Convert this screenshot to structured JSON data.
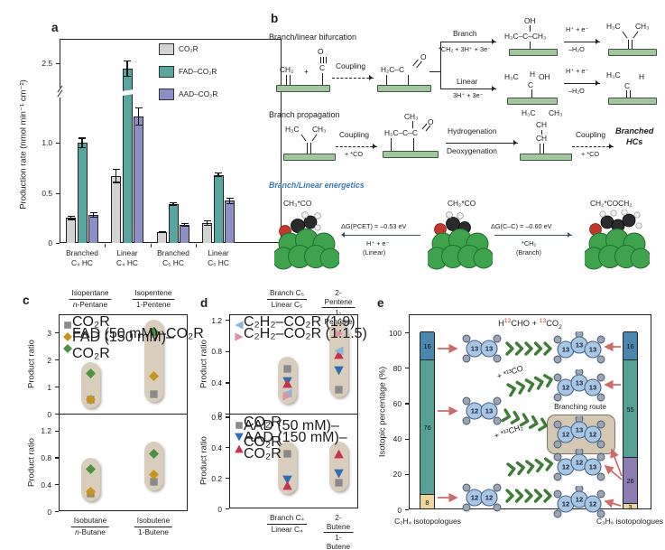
{
  "panel_a": {
    "label": "a"
  },
  "panel_c": {
    "label": "c"
  },
  "panel_d": {
    "label": "d"
  },
  "panel_e": {
    "label": "e"
  },
  "colors": {
    "teal": "#57a7a0",
    "purple": "#8b8fc6",
    "gray_bar": "#d3d3d3",
    "gold": "#c8951c",
    "green": "#4a9143",
    "blue_tri": "#2f6cb3",
    "red_tri": "#c6314e",
    "lightblue_tri": "#8cb3da",
    "pink_tri": "#dc93a5",
    "capsule": "#d9cdbc",
    "e_blue": "#4a86ad",
    "e_teal": "#55a196",
    "e_yellow": "#eed69c",
    "e_purple": "#8d7db3",
    "arrow_red": "#cf6a6b",
    "chevron_green": "#3f7c37",
    "energetics_blue": "#3779b5",
    "iso_red": "#c63f2f",
    "slab_green": "#a4c69c"
  },
  "panel_b": {
    "label": "b",
    "bifurcation_title": "Branch/linear bifurcation",
    "propagation_title": "Branch propagation",
    "energetics_title": "Branch/Linear energetics",
    "ch2": "CH₂",
    "plus": "+",
    "c": "C",
    "o": "O",
    "coupling": "Coupling",
    "h2c_c": "H₂C–C",
    "branch": "Branch",
    "branch_sub": "*CH₂ + 3H⁺ + 3e⁻",
    "linear": "Linear",
    "linear_sub": "3H⁺ + 3e⁻",
    "oh": "OH",
    "isopropoxy": "H₃C–C–CH₃",
    "h_e": "H⁺ + e⁻",
    "minus_h2o": "–H₂O",
    "h3c": "H₃C",
    "ch3": "CH₃",
    "h": "H",
    "ch": "CH",
    "plus_co": "+ *CO",
    "acyl": "H₃C–C–C",
    "hydrogenation": "Hydrogenation",
    "deoxygenation": "Deoxygenation",
    "branched_1": "Branched",
    "branched_2": "HCs",
    "mol_left": "CH₃*CO",
    "mol_center": "CH₂*CO",
    "mol_right": "CH₂*COCH₂",
    "dg_left": "ΔG(PCET) = –0.53 eV",
    "dg_left_sub": "H⁺ + e⁻",
    "dg_left_sub2": "(Linear)",
    "dg_right": "ΔG(C–C) = –0.60 eV",
    "dg_right_sub": "*CH₂",
    "dg_right_sub2": "(Branch)"
  },
  "chart_data": [
    {
      "id": "a",
      "type": "bar",
      "ylabel": "Production rate (nmol min⁻¹ cm⁻²)",
      "ylim": [
        0,
        2.75
      ],
      "axis_break": [
        1.45,
        2.25
      ],
      "yticks": [
        "0",
        "0.5",
        "1.0",
        "2.5"
      ],
      "categories": [
        {
          "line1": "Branched",
          "line2": "C₄ HC"
        },
        {
          "line1": "Linear",
          "line2": "C₄ HC"
        },
        {
          "line1": "Branched",
          "line2": "C₅ HC"
        },
        {
          "line1": "Linear",
          "line2": "C₅ HC"
        }
      ],
      "series": [
        {
          "name": "CO₂R",
          "color": "#d3d3d3",
          "values": [
            0.25,
            0.67,
            0.11,
            0.2
          ],
          "errors": [
            0.02,
            0.07,
            0.01,
            0.025
          ]
        },
        {
          "name": "FAD–CO₂R",
          "color": "#57a7a0",
          "values": [
            1.0,
            2.45,
            0.39,
            0.68
          ],
          "errors": [
            0.05,
            0.08,
            0.015,
            0.02
          ]
        },
        {
          "name": "AAD–CO₂R",
          "color": "#8b8fc6",
          "values": [
            0.28,
            1.26,
            0.18,
            0.42
          ],
          "errors": [
            0.03,
            0.09,
            0.02,
            0.03
          ]
        }
      ],
      "legend_position": "top-right",
      "grid": false
    },
    {
      "id": "c_top",
      "type": "scatter",
      "ylabel": "Product ratio",
      "ylim": [
        0,
        3.67
      ],
      "yticks": [
        "0",
        "1",
        "2",
        "3"
      ],
      "columns": [
        {
          "num": "Isopentane",
          "den": "n-Pentane",
          "it": true
        },
        {
          "num": "Isopentene",
          "den": "1-Pentene"
        }
      ],
      "series": [
        {
          "name": "CO₂R",
          "marker": "square",
          "color": "#8a8a8a",
          "values": [
            0.58,
            0.8
          ]
        },
        {
          "name": "FAD (50 mM)–CO₂R",
          "marker": "diamond",
          "color": "#c8951c",
          "values": [
            0.6,
            1.45
          ]
        },
        {
          "name": "FAD (150 mM)–CO₂R",
          "marker": "diamond",
          "color": "#4a9143",
          "values": [
            1.55,
            3.1
          ]
        }
      ]
    },
    {
      "id": "c_bottom",
      "type": "scatter",
      "ylabel": "Product ratio",
      "ylim": [
        0,
        1.45
      ],
      "yticks": [
        "0",
        "0.4",
        "0.8",
        "1.2"
      ],
      "columns": [
        {
          "num": "Isobutane",
          "den": "n-Butane",
          "it": true
        },
        {
          "num": "Isobutene",
          "den": "1-Butene"
        }
      ],
      "series": [
        {
          "name": "CO₂R",
          "marker": "square",
          "color": "#8a8a8a",
          "values": [
            0.29,
            0.46
          ]
        },
        {
          "name": "FAD (50 mM)–CO₂R",
          "marker": "diamond",
          "color": "#c8951c",
          "values": [
            0.32,
            0.57
          ]
        },
        {
          "name": "FAD (150 mM)–CO₂R",
          "marker": "diamond",
          "color": "#4a9143",
          "values": [
            0.65,
            0.88
          ]
        }
      ]
    },
    {
      "id": "d_top",
      "type": "scatter",
      "ylabel": "Product ratio",
      "ylim": [
        0,
        1.27
      ],
      "yticks": [
        "0",
        "0.4",
        "0.8",
        "1.2"
      ],
      "columns": [
        {
          "num": "Branch C₅",
          "den": "Linear C₅"
        },
        {
          "num": "2-Pentene",
          "den": "1-Pentene"
        }
      ],
      "series": [
        {
          "name": "CO₂R",
          "marker": "square",
          "color": "#8a8a8a",
          "values": [
            0.6,
            0.33
          ]
        },
        {
          "name": "AAD (50 mM)–CO₂R",
          "marker": "down",
          "color": "#2f6cb3",
          "values": [
            0.43,
            0.57
          ]
        },
        {
          "name": "AAD (150 mM)–CO₂R",
          "marker": "up",
          "color": "#c6314e",
          "values": [
            0.41,
            0.78
          ]
        },
        {
          "name": "C₂H₂–CO₂R (1:9)",
          "marker": "left",
          "color": "#8cb3da",
          "values": [
            0.28,
            0.82
          ]
        },
        {
          "name": "C₂H₂–CO₂R (1:1.5)",
          "marker": "right",
          "color": "#dc93a5",
          "values": [
            0.25,
            1.05
          ]
        }
      ]
    },
    {
      "id": "d_bottom",
      "type": "scatter",
      "ylabel": "Product ratio",
      "ylim": [
        0,
        0.62
      ],
      "yticks": [
        "0",
        "0.2",
        "0.4",
        "0.6"
      ],
      "columns": [
        {
          "num": "Branch C₄",
          "den": "Linear C₄"
        },
        {
          "num": "2-Butene",
          "den": "1-Butene"
        }
      ],
      "series": [
        {
          "name": "CO₂R",
          "marker": "square",
          "color": "#8a8a8a",
          "values": [
            0.37,
            0.18
          ]
        },
        {
          "name": "AAD (50 mM)–CO₂R",
          "marker": "down",
          "color": "#2f6cb3",
          "values": [
            0.2,
            0.24
          ]
        },
        {
          "name": "AAD (150 mM)–CO₂R",
          "marker": "up",
          "color": "#c6314e",
          "values": [
            0.16,
            0.37
          ]
        }
      ]
    },
    {
      "id": "e",
      "type": "bar-stacked",
      "ylabel": "Isotopic percentage (%)",
      "ylim": [
        0,
        100
      ],
      "yticks": [
        "0",
        "20",
        "40",
        "60",
        "80",
        "100"
      ],
      "title_parts": [
        {
          "t": "H"
        },
        {
          "t": "12",
          "sup": true,
          "red": true
        },
        {
          "t": "CHO + "
        },
        {
          "t": "13",
          "sup": true,
          "red": true
        },
        {
          "t": "CO"
        },
        {
          "t": "2",
          "sub": true
        }
      ],
      "bars": [
        {
          "label": "C₂H₄ isotopologues",
          "segments": [
            {
              "value": 8,
              "color": "#eed69c"
            },
            {
              "value": 76,
              "color": "#55a196"
            },
            {
              "value": 16,
              "color": "#4a86ad"
            }
          ]
        },
        {
          "label": "C₃H₆ isotopologues",
          "segments": [
            {
              "value": 3,
              "color": "#eed69c"
            },
            {
              "value": 26,
              "color": "#8d7db3"
            },
            {
              "value": 55,
              "color": "#55a196"
            },
            {
              "value": 16,
              "color": "#4a86ad"
            }
          ]
        }
      ],
      "left_molecules": [
        [
          "13",
          "13"
        ],
        [
          "12",
          "13"
        ],
        [
          "12",
          "12"
        ]
      ],
      "right_molecules": [
        [
          "13",
          "13",
          "13"
        ],
        [
          "12",
          "13",
          "13"
        ],
        [
          "12",
          "13",
          "12"
        ],
        [
          "12",
          "12",
          "13"
        ],
        [
          "12",
          "12",
          "12"
        ]
      ],
      "branching_label": "Branching route",
      "reagents": [
        "+ *¹³CO",
        "+ *¹²CH₂"
      ]
    }
  ]
}
